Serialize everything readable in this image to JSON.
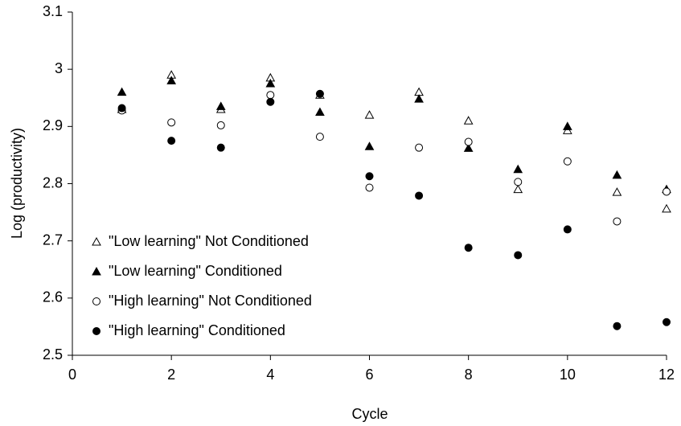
{
  "chart_data": {
    "type": "scatter",
    "x_label": "Cycle",
    "y_label": "Log (productivity)",
    "xlim": [
      0,
      12
    ],
    "xticks": [
      0,
      2,
      4,
      6,
      8,
      10,
      12
    ],
    "ylim": [
      2.5,
      3.1
    ],
    "yticks": [
      2.5,
      2.6,
      2.7,
      2.8,
      2.9,
      3,
      3.1
    ],
    "legend": "lower-left",
    "x": [
      1,
      2,
      3,
      4,
      5,
      6,
      7,
      8,
      9,
      10,
      11,
      12
    ],
    "series": [
      {
        "name": "\"Low learning\" Not Conditioned",
        "color": "#000000",
        "marker": "triangle-open",
        "values": [
          2.93,
          2.99,
          2.93,
          2.985,
          2.955,
          2.92,
          2.96,
          2.91,
          2.79,
          2.893,
          2.785,
          2.756
        ]
      },
      {
        "name": "\"Low learning\" Conditioned",
        "color": "#000000",
        "marker": "triangle-filled",
        "values": [
          2.96,
          2.98,
          2.935,
          2.975,
          2.925,
          2.865,
          2.948,
          2.862,
          2.825,
          2.9,
          2.815,
          2.79
        ]
      },
      {
        "name": "\"High learning\" Not Conditioned",
        "color": "#000000",
        "marker": "circle-open",
        "values": [
          2.928,
          2.907,
          2.902,
          2.955,
          2.882,
          2.793,
          2.863,
          2.873,
          2.803,
          2.839,
          2.734,
          2.786
        ]
      },
      {
        "name": "\"High learning\" Conditioned",
        "color": "#000000",
        "marker": "circle-filled",
        "values": [
          2.932,
          2.875,
          2.863,
          2.943,
          2.957,
          2.813,
          2.779,
          2.688,
          2.675,
          2.72,
          2.551,
          2.558
        ]
      }
    ]
  }
}
